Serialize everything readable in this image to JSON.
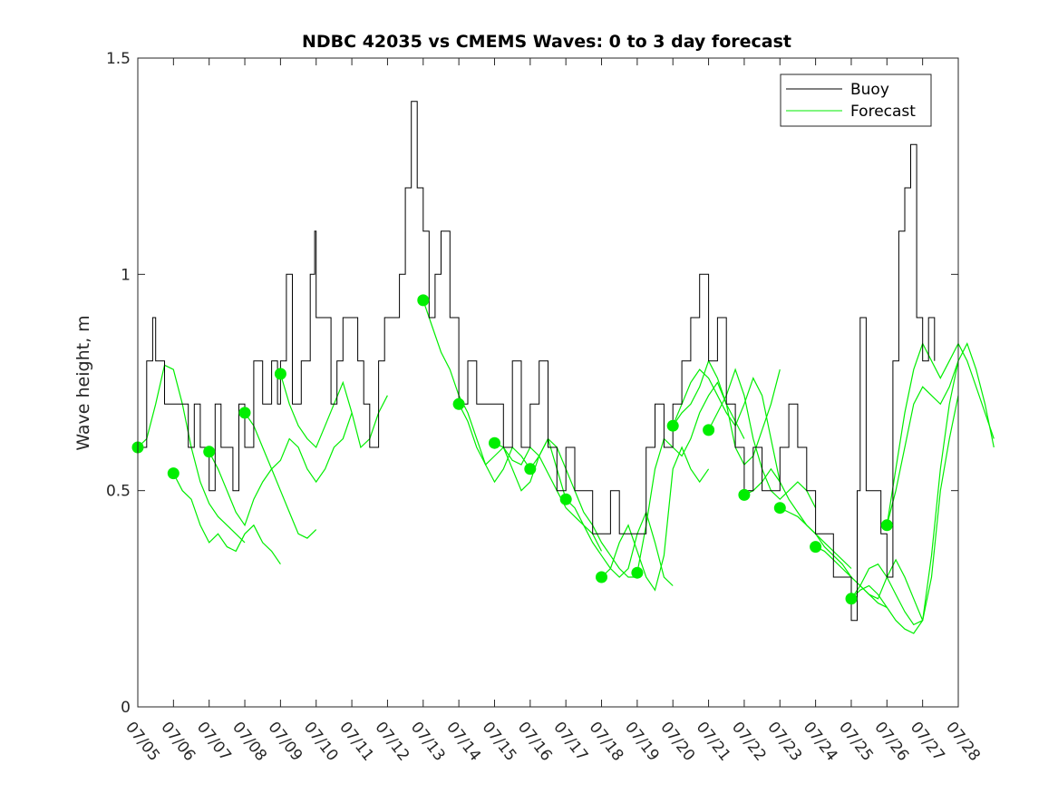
{
  "chart_data": {
    "type": "line",
    "title": "NDBC 42035 vs CMEMS Waves: 0 to 3 day forecast",
    "xlabel": "",
    "ylabel": "Wave height, m",
    "ylim": [
      0,
      1.5
    ],
    "xlim": [
      "07/05",
      "07/28"
    ],
    "yticks": [
      "0",
      "0.5",
      "1",
      "1.5"
    ],
    "xticks": [
      "07/05",
      "07/06",
      "07/07",
      "07/08",
      "07/09",
      "07/10",
      "07/11",
      "07/12",
      "07/13",
      "07/14",
      "07/15",
      "07/16",
      "07/17",
      "07/18",
      "07/19",
      "07/20",
      "07/21",
      "07/22",
      "07/23",
      "07/24",
      "07/25",
      "07/26",
      "07/27",
      "07/28"
    ],
    "legend": {
      "position": "top-right",
      "entries": [
        "Buoy",
        "Forecast"
      ]
    },
    "colors": {
      "buoy": "#000000",
      "forecast": "#00ee00"
    },
    "buoy": {
      "name": "Buoy",
      "points": [
        [
          "07/05 00:00",
          0.6
        ],
        [
          "07/05 04:00",
          0.6
        ],
        [
          "07/05 06:00",
          0.8
        ],
        [
          "07/05 10:00",
          0.9
        ],
        [
          "07/05 12:00",
          0.8
        ],
        [
          "07/05 18:00",
          0.7
        ],
        [
          "07/06 00:00",
          0.7
        ],
        [
          "07/06 08:00",
          0.7
        ],
        [
          "07/06 10:00",
          0.6
        ],
        [
          "07/06 14:00",
          0.7
        ],
        [
          "07/06 18:00",
          0.6
        ],
        [
          "07/06 22:00",
          0.6
        ],
        [
          "07/07 00:00",
          0.5
        ],
        [
          "07/07 04:00",
          0.7
        ],
        [
          "07/07 08:00",
          0.6
        ],
        [
          "07/07 12:00",
          0.6
        ],
        [
          "07/07 16:00",
          0.5
        ],
        [
          "07/07 20:00",
          0.7
        ],
        [
          "07/08 00:00",
          0.6
        ],
        [
          "07/08 06:00",
          0.8
        ],
        [
          "07/08 12:00",
          0.7
        ],
        [
          "07/08 18:00",
          0.8
        ],
        [
          "07/08 22:00",
          0.7
        ],
        [
          "07/09 00:00",
          0.8
        ],
        [
          "07/09 04:00",
          1.0
        ],
        [
          "07/09 08:00",
          0.7
        ],
        [
          "07/09 14:00",
          0.8
        ],
        [
          "07/09 20:00",
          1.0
        ],
        [
          "07/09 23:00",
          1.1
        ],
        [
          "07/10 00:00",
          0.9
        ],
        [
          "07/10 06:00",
          0.9
        ],
        [
          "07/10 10:00",
          0.7
        ],
        [
          "07/10 14:00",
          0.8
        ],
        [
          "07/10 18:00",
          0.9
        ],
        [
          "07/11 00:00",
          0.9
        ],
        [
          "07/11 04:00",
          0.8
        ],
        [
          "07/11 08:00",
          0.7
        ],
        [
          "07/11 12:00",
          0.6
        ],
        [
          "07/11 18:00",
          0.8
        ],
        [
          "07/11 22:00",
          0.9
        ],
        [
          "07/12 00:00",
          0.9
        ],
        [
          "07/12 04:00",
          0.9
        ],
        [
          "07/12 08:00",
          1.0
        ],
        [
          "07/12 12:00",
          1.2
        ],
        [
          "07/12 16:00",
          1.4
        ],
        [
          "07/12 20:00",
          1.2
        ],
        [
          "07/13 00:00",
          1.1
        ],
        [
          "07/13 04:00",
          0.9
        ],
        [
          "07/13 08:00",
          1.0
        ],
        [
          "07/13 12:00",
          1.1
        ],
        [
          "07/13 18:00",
          0.9
        ],
        [
          "07/14 00:00",
          0.7
        ],
        [
          "07/14 06:00",
          0.8
        ],
        [
          "07/14 12:00",
          0.7
        ],
        [
          "07/14 18:00",
          0.7
        ],
        [
          "07/15 00:00",
          0.7
        ],
        [
          "07/15 06:00",
          0.6
        ],
        [
          "07/15 12:00",
          0.8
        ],
        [
          "07/15 18:00",
          0.6
        ],
        [
          "07/16 00:00",
          0.7
        ],
        [
          "07/16 06:00",
          0.8
        ],
        [
          "07/16 12:00",
          0.6
        ],
        [
          "07/16 18:00",
          0.5
        ],
        [
          "07/17 00:00",
          0.6
        ],
        [
          "07/17 06:00",
          0.5
        ],
        [
          "07/17 12:00",
          0.5
        ],
        [
          "07/17 18:00",
          0.4
        ],
        [
          "07/18 00:00",
          0.4
        ],
        [
          "07/18 06:00",
          0.5
        ],
        [
          "07/18 12:00",
          0.4
        ],
        [
          "07/18 18:00",
          0.4
        ],
        [
          "07/19 00:00",
          0.4
        ],
        [
          "07/19 06:00",
          0.6
        ],
        [
          "07/19 12:00",
          0.7
        ],
        [
          "07/19 18:00",
          0.6
        ],
        [
          "07/20 00:00",
          0.7
        ],
        [
          "07/20 06:00",
          0.8
        ],
        [
          "07/20 12:00",
          0.9
        ],
        [
          "07/20 18:00",
          1.0
        ],
        [
          "07/21 00:00",
          0.8
        ],
        [
          "07/21 06:00",
          0.9
        ],
        [
          "07/21 12:00",
          0.7
        ],
        [
          "07/21 18:00",
          0.6
        ],
        [
          "07/22 00:00",
          0.5
        ],
        [
          "07/22 06:00",
          0.6
        ],
        [
          "07/22 12:00",
          0.5
        ],
        [
          "07/22 18:00",
          0.5
        ],
        [
          "07/23 00:00",
          0.6
        ],
        [
          "07/23 06:00",
          0.7
        ],
        [
          "07/23 12:00",
          0.6
        ],
        [
          "07/23 18:00",
          0.5
        ],
        [
          "07/24 00:00",
          0.4
        ],
        [
          "07/24 06:00",
          0.4
        ],
        [
          "07/24 12:00",
          0.3
        ],
        [
          "07/24 18:00",
          0.3
        ],
        [
          "07/25 00:00",
          0.2
        ],
        [
          "07/25 04:00",
          0.5
        ],
        [
          "07/25 06:00",
          0.9
        ],
        [
          "07/25 10:00",
          0.5
        ],
        [
          "07/25 16:00",
          0.5
        ],
        [
          "07/25 20:00",
          0.4
        ],
        [
          "07/26 00:00",
          0.3
        ],
        [
          "07/26 04:00",
          0.8
        ],
        [
          "07/26 08:00",
          1.1
        ],
        [
          "07/26 12:00",
          1.2
        ],
        [
          "07/26 16:00",
          1.3
        ],
        [
          "07/26 20:00",
          0.9
        ],
        [
          "07/27 00:00",
          0.8
        ],
        [
          "07/27 04:00",
          0.9
        ],
        [
          "07/27 08:00",
          0.8
        ]
      ]
    },
    "forecast_series": [
      {
        "start": "07/05 00:00",
        "values": [
          0.6,
          0.62,
          0.7,
          0.79,
          0.78,
          0.7,
          0.6,
          0.52,
          0.47,
          0.44,
          0.42,
          0.4,
          0.38
        ]
      },
      {
        "start": "07/06 00:00",
        "values": [
          0.54,
          0.5,
          0.48,
          0.42,
          0.38,
          0.4,
          0.37,
          0.36,
          0.4,
          0.42,
          0.38,
          0.36,
          0.33
        ]
      },
      {
        "start": "07/07 00:00",
        "values": [
          0.59,
          0.55,
          0.5,
          0.45,
          0.42,
          0.48,
          0.52,
          0.55,
          0.5,
          0.45,
          0.4,
          0.39,
          0.41
        ]
      },
      {
        "start": "07/08 00:00",
        "values": [
          0.68,
          0.65,
          0.6,
          0.55,
          0.57,
          0.62,
          0.6,
          0.55,
          0.52,
          0.55,
          0.6,
          0.62,
          0.68
        ]
      },
      {
        "start": "07/09 00:00",
        "values": [
          0.77,
          0.7,
          0.65,
          0.62,
          0.6,
          0.65,
          0.7,
          0.75,
          0.68,
          0.6,
          0.62,
          0.68,
          0.72
        ]
      },
      {
        "start": "07/13 00:00",
        "values": [
          0.94,
          0.88,
          0.82,
          0.78,
          0.72,
          0.68,
          0.62,
          0.56,
          0.52,
          0.55,
          0.6,
          0.58,
          0.55
        ]
      },
      {
        "start": "07/14 00:00",
        "values": [
          0.7,
          0.66,
          0.6,
          0.56,
          0.58,
          0.6,
          0.55,
          0.5,
          0.52,
          0.58,
          0.62,
          0.55,
          0.48
        ]
      },
      {
        "start": "07/15 00:00",
        "values": [
          0.61,
          0.6,
          0.57,
          0.56,
          0.6,
          0.58,
          0.54,
          0.5,
          0.46,
          0.44,
          0.42,
          0.4,
          0.36
        ]
      },
      {
        "start": "07/16 00:00",
        "values": [
          0.55,
          0.58,
          0.62,
          0.6,
          0.55,
          0.5,
          0.45,
          0.42,
          0.38,
          0.35,
          0.32,
          0.3,
          0.3
        ]
      },
      {
        "start": "07/17 00:00",
        "values": [
          0.48,
          0.46,
          0.42,
          0.38,
          0.35,
          0.32,
          0.3,
          0.32,
          0.4,
          0.45,
          0.38,
          0.3,
          0.28
        ]
      },
      {
        "start": "07/18 00:00",
        "values": [
          0.3,
          0.32,
          0.38,
          0.42,
          0.36,
          0.3,
          0.27,
          0.35,
          0.55,
          0.6,
          0.55,
          0.52,
          0.55
        ]
      },
      {
        "start": "07/19 00:00",
        "values": [
          0.31,
          0.42,
          0.55,
          0.62,
          0.6,
          0.58,
          0.62,
          0.68,
          0.72,
          0.75,
          0.7,
          0.66,
          0.62
        ]
      },
      {
        "start": "07/20 00:00",
        "values": [
          0.65,
          0.7,
          0.75,
          0.78,
          0.76,
          0.72,
          0.68,
          0.65,
          0.7,
          0.76,
          0.72,
          0.62,
          0.52
        ]
      },
      {
        "start": "07/21 00:00",
        "values": [
          0.64,
          0.68,
          0.72,
          0.78,
          0.72,
          0.62,
          0.55,
          0.5,
          0.48,
          0.5,
          0.52,
          0.5,
          0.46
        ]
      },
      {
        "start": "07/22 00:00",
        "values": [
          0.49,
          0.5,
          0.52,
          0.55,
          0.52,
          0.48,
          0.45,
          0.42,
          0.4,
          0.38,
          0.36,
          0.34,
          0.32
        ]
      },
      {
        "start": "07/23 00:00",
        "values": [
          0.46,
          0.45,
          0.44,
          0.42,
          0.4,
          0.37,
          0.35,
          0.33,
          0.3,
          0.28,
          0.26,
          0.24,
          0.23
        ]
      },
      {
        "start": "07/24 00:00",
        "values": [
          0.37,
          0.36,
          0.34,
          0.32,
          0.3,
          0.28,
          0.26,
          0.25,
          0.3,
          0.34,
          0.3,
          0.25,
          0.2
        ]
      },
      {
        "start": "07/25 00:00",
        "values": [
          0.25,
          0.28,
          0.32,
          0.33,
          0.3,
          0.26,
          0.22,
          0.19,
          0.2,
          0.3,
          0.5,
          0.62,
          0.72
        ]
      },
      {
        "start": "07/26 00:00",
        "values": [
          0.42,
          0.55,
          0.68,
          0.78,
          0.84,
          0.8,
          0.76,
          0.8,
          0.84,
          0.8,
          0.74,
          0.68,
          0.62
        ]
      }
    ],
    "forecast_extra": [
      {
        "start": "07/25 00:00",
        "values": [
          0.25,
          0.27,
          0.28,
          0.26,
          0.23,
          0.2,
          0.18,
          0.17,
          0.2,
          0.35,
          0.55,
          0.7,
          0.8
        ]
      },
      {
        "start": "07/26 00:00",
        "values": [
          0.42,
          0.5,
          0.6,
          0.7,
          0.74,
          0.72,
          0.7,
          0.74,
          0.8,
          0.84,
          0.78,
          0.7,
          0.6
        ]
      },
      {
        "start": "07/20 00:00",
        "values": [
          0.65,
          0.68,
          0.7,
          0.74,
          0.8,
          0.76,
          0.7,
          0.6,
          0.56,
          0.58,
          0.64,
          0.7,
          0.78
        ]
      }
    ],
    "forecast_start_markers": [
      [
        "07/05 00:00",
        0.6
      ],
      [
        "07/06 00:00",
        0.54
      ],
      [
        "07/07 00:00",
        0.59
      ],
      [
        "07/08 00:00",
        0.68
      ],
      [
        "07/09 00:00",
        0.77
      ],
      [
        "07/13 00:00",
        0.94
      ],
      [
        "07/14 00:00",
        0.7
      ],
      [
        "07/15 00:00",
        0.61
      ],
      [
        "07/16 00:00",
        0.55
      ],
      [
        "07/17 00:00",
        0.48
      ],
      [
        "07/18 00:00",
        0.3
      ],
      [
        "07/19 00:00",
        0.31
      ],
      [
        "07/20 00:00",
        0.65
      ],
      [
        "07/21 00:00",
        0.64
      ],
      [
        "07/22 00:00",
        0.49
      ],
      [
        "07/23 00:00",
        0.46
      ],
      [
        "07/24 00:00",
        0.37
      ],
      [
        "07/25 00:00",
        0.25
      ],
      [
        "07/26 00:00",
        0.42
      ]
    ]
  }
}
